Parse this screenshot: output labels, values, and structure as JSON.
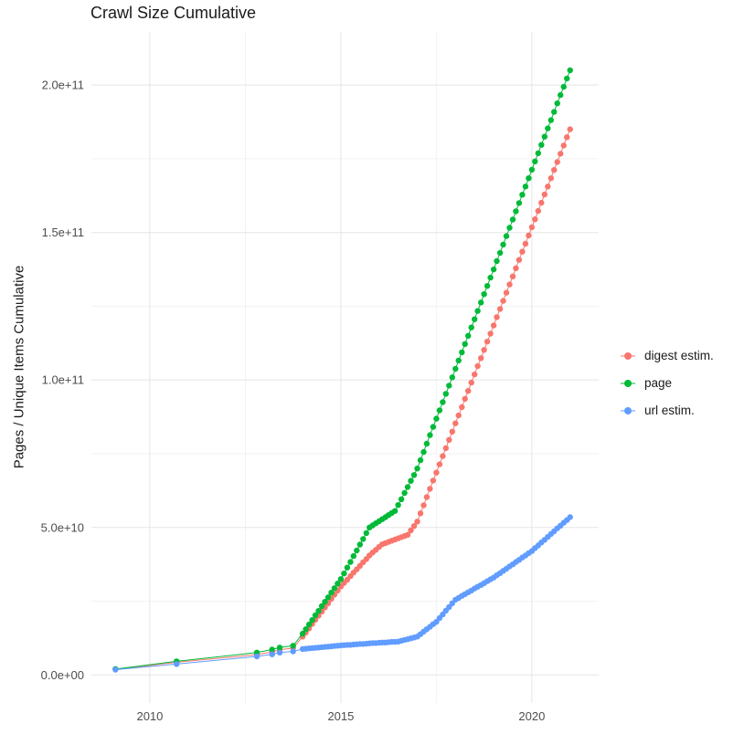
{
  "chart_data": {
    "type": "line",
    "title": "Crawl Size Cumulative",
    "xlabel": "",
    "ylabel": "Pages / Unique Items Cumulative",
    "legend_position": "right",
    "grid": {
      "major_color": "#e5e5e5",
      "minor_color": "#f2f2f2"
    },
    "axis_text_color": "#4d4d4d",
    "xlim": [
      2008.47,
      2021.75
    ],
    "ylim": [
      -9500000000,
      218000000000
    ],
    "x_ticks": [
      {
        "value": 2010,
        "label": "2010"
      },
      {
        "value": 2015,
        "label": "2015"
      },
      {
        "value": 2020,
        "label": "2020"
      }
    ],
    "y_ticks": [
      {
        "value": 0,
        "label": "0.0e+00"
      },
      {
        "value": 50000000000,
        "label": "5.0e+10"
      },
      {
        "value": 100000000000,
        "label": "1.0e+11"
      },
      {
        "value": 150000000000,
        "label": "1.5e+11"
      },
      {
        "value": 200000000000,
        "label": "2.0e+11"
      }
    ],
    "x_minor": [
      2012.5,
      2017.5
    ],
    "y_minor": [
      25000000000,
      75000000000,
      125000000000,
      175000000000
    ],
    "y_unit": 1000000000,
    "x": [
      2009.1,
      2010.7,
      2012.8,
      2013.2,
      2013.4,
      2013.75,
      2014.0,
      2014.083,
      2014.167,
      2014.25,
      2014.333,
      2014.417,
      2014.5,
      2014.583,
      2014.667,
      2014.75,
      2014.833,
      2014.917,
      2015.0,
      2015.083,
      2015.167,
      2015.25,
      2015.333,
      2015.417,
      2015.5,
      2015.583,
      2015.667,
      2015.75,
      2015.833,
      2015.917,
      2016.0,
      2016.083,
      2016.167,
      2016.25,
      2016.333,
      2016.417,
      2016.5,
      2016.583,
      2016.667,
      2016.75,
      2016.833,
      2016.917,
      2017.0,
      2017.083,
      2017.167,
      2017.25,
      2017.333,
      2017.417,
      2017.5,
      2017.583,
      2017.667,
      2017.75,
      2017.833,
      2017.917,
      2018.0,
      2018.083,
      2018.167,
      2018.25,
      2018.333,
      2018.417,
      2018.5,
      2018.583,
      2018.667,
      2018.75,
      2018.833,
      2018.917,
      2019.0,
      2019.083,
      2019.167,
      2019.25,
      2019.333,
      2019.417,
      2019.5,
      2019.583,
      2019.667,
      2019.75,
      2019.833,
      2019.917,
      2020.0,
      2020.083,
      2020.167,
      2020.25,
      2020.333,
      2020.417,
      2020.5,
      2020.583,
      2020.667,
      2020.75,
      2020.833,
      2020.917,
      2021.0
    ],
    "series": [
      {
        "name": "digest estim.",
        "color": "#F8766D",
        "values": [
          1.9,
          4.3,
          6.9,
          7.8,
          8.5,
          9.1,
          13.0,
          14.4,
          15.8,
          17.3,
          18.7,
          20.1,
          21.5,
          22.9,
          24.3,
          25.8,
          27.2,
          28.6,
          30.0,
          31.2,
          32.3,
          33.5,
          34.7,
          35.8,
          37.0,
          38.2,
          39.3,
          40.5,
          41.5,
          42.4,
          43.4,
          44.3,
          44.7,
          45.1,
          45.5,
          45.9,
          46.3,
          46.7,
          47.1,
          47.5,
          49.0,
          50.5,
          52.0,
          54.8,
          57.5,
          60.3,
          63.1,
          65.9,
          68.6,
          71.4,
          74.2,
          76.9,
          79.7,
          82.5,
          85.3,
          88.0,
          90.8,
          93.6,
          96.3,
          99.1,
          101.9,
          104.7,
          107.4,
          110.2,
          113.0,
          115.7,
          118.5,
          121.3,
          124.1,
          126.8,
          129.6,
          132.4,
          135.1,
          137.9,
          140.7,
          143.5,
          146.2,
          149.0,
          151.8,
          154.5,
          157.3,
          160.1,
          162.9,
          165.6,
          168.4,
          171.2,
          173.9,
          176.7,
          179.5,
          182.3,
          185.0
        ]
      },
      {
        "name": "page",
        "color": "#00BA38",
        "values": [
          2.0,
          4.6,
          7.6,
          8.6,
          9.3,
          9.9,
          14.0,
          15.5,
          17.1,
          18.6,
          20.2,
          21.7,
          23.3,
          24.8,
          26.3,
          27.9,
          29.4,
          31.0,
          32.5,
          34.4,
          36.4,
          38.3,
          40.3,
          42.2,
          44.2,
          46.1,
          48.1,
          50.0,
          50.7,
          51.4,
          52.1,
          52.8,
          53.5,
          54.2,
          54.9,
          55.6,
          57.6,
          59.6,
          61.7,
          63.7,
          65.8,
          67.8,
          70.0,
          72.8,
          75.6,
          78.4,
          81.3,
          84.1,
          86.9,
          89.7,
          92.5,
          95.3,
          98.1,
          100.9,
          103.8,
          106.6,
          109.4,
          112.2,
          115.0,
          117.8,
          120.6,
          123.4,
          126.3,
          129.1,
          131.9,
          134.7,
          137.5,
          140.3,
          143.1,
          145.9,
          148.8,
          151.6,
          154.4,
          157.2,
          160.0,
          162.8,
          165.6,
          168.4,
          171.3,
          174.1,
          176.9,
          179.7,
          182.5,
          185.3,
          188.1,
          190.9,
          193.8,
          196.6,
          199.4,
          202.2,
          205.0
        ]
      },
      {
        "name": "url estim.",
        "color": "#619CFF",
        "values": [
          1.8,
          3.7,
          6.3,
          7.0,
          7.6,
          8.0,
          8.8,
          8.9,
          9.0,
          9.1,
          9.2,
          9.3,
          9.4,
          9.5,
          9.6,
          9.7,
          9.8,
          9.9,
          10.0,
          10.1,
          10.2,
          10.2,
          10.3,
          10.4,
          10.5,
          10.5,
          10.6,
          10.7,
          10.8,
          10.8,
          10.9,
          11.0,
          11.0,
          11.1,
          11.2,
          11.2,
          11.3,
          11.6,
          11.9,
          12.1,
          12.4,
          12.7,
          13.0,
          13.8,
          14.7,
          15.5,
          16.3,
          17.2,
          18.0,
          19.3,
          20.5,
          21.8,
          23.0,
          24.3,
          25.5,
          26.1,
          26.8,
          27.4,
          28.0,
          28.6,
          29.3,
          29.9,
          30.5,
          31.1,
          31.8,
          32.4,
          33.0,
          33.8,
          34.5,
          35.3,
          36.0,
          36.8,
          37.5,
          38.3,
          39.0,
          39.8,
          40.5,
          41.3,
          42.0,
          43.0,
          43.9,
          44.9,
          45.8,
          46.8,
          47.8,
          48.7,
          49.7,
          50.6,
          51.6,
          52.5,
          53.5
        ]
      }
    ]
  }
}
